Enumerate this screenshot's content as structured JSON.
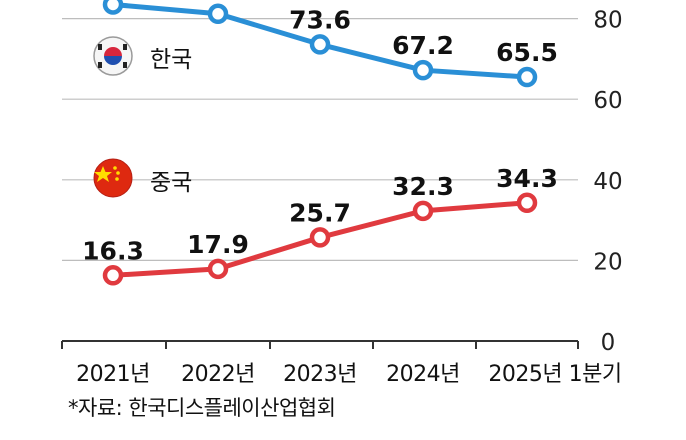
{
  "chart_data": {
    "type": "line",
    "categories": [
      "2021년",
      "2022년",
      "2023년",
      "2024년",
      "2025년 1분기"
    ],
    "series": [
      {
        "name": "한국",
        "values": [
          83.5,
          81.2,
          73.6,
          67.2,
          65.5
        ],
        "color": "#2a8fd6",
        "labels": [
          "",
          "",
          "73.6",
          "67.2",
          "65.5"
        ],
        "flag": "south-korea-flag-icon"
      },
      {
        "name": "중국",
        "values": [
          16.3,
          17.9,
          25.7,
          32.3,
          34.3
        ],
        "color": "#e03a3f",
        "labels": [
          "16.3",
          "17.9",
          "25.7",
          "32.3",
          "34.3"
        ],
        "flag": "china-flag-icon"
      }
    ],
    "yticks": [
      "0",
      "20",
      "40",
      "60",
      "80"
    ],
    "ylim": [
      0,
      85
    ],
    "grid": true,
    "source": "*자료: 한국디스플레이산업협회"
  }
}
